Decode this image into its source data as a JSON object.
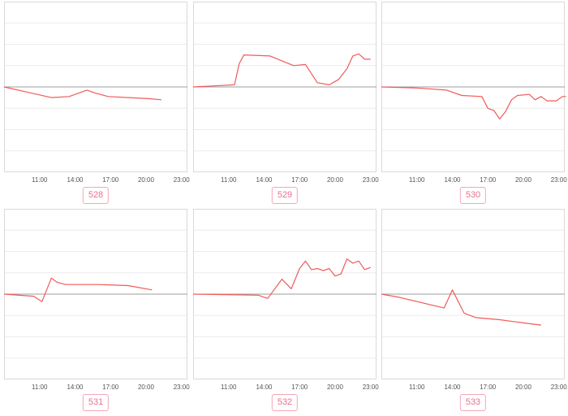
{
  "styles": {
    "line_color": "#f15a5a",
    "grid_color": "#ececec",
    "baseline_color": "#9e9e9e",
    "frame_color": "#d9d9d9",
    "badge_color": "#e8718f"
  },
  "chart_data": [
    {
      "type": "line",
      "id": "528",
      "x_ticks": [
        "11:00",
        "14:00",
        "17:00",
        "20:00",
        "23:00"
      ],
      "xlim": [
        8,
        23.5
      ],
      "ylim": [
        -4,
        4
      ],
      "x": [
        8.0,
        10.0,
        12.0,
        13.5,
        15.0,
        15.8,
        16.8,
        18.5,
        20.2,
        21.3
      ],
      "y": [
        0,
        -0.25,
        -0.5,
        -0.45,
        -0.15,
        -0.3,
        -0.45,
        -0.5,
        -0.55,
        -0.6
      ],
      "y_override": [
        0,
        -0.2,
        -0.35,
        -0.45,
        -0.2,
        -0.25,
        -0.4,
        -0.45,
        -0.45,
        -0.6
      ]
    },
    {
      "type": "line",
      "id": "529",
      "x_ticks": [
        "11:00",
        "14:00",
        "17:00",
        "20:00",
        "23:00"
      ],
      "xlim": [
        8,
        23.5
      ],
      "ylim": [
        -4,
        4
      ],
      "x": [
        8.0,
        11.5,
        11.9,
        12.3,
        14.5,
        16.5,
        17.5,
        18.5,
        19.5,
        20.3,
        21.0,
        21.5,
        22.0,
        22.5,
        23.0
      ],
      "y": [
        0,
        0.1,
        1.1,
        1.5,
        1.45,
        1.0,
        1.05,
        0.2,
        0.1,
        0.35,
        0.85,
        1.45,
        1.55,
        1.3,
        1.3
      ]
    },
    {
      "type": "line",
      "id": "530",
      "x_ticks": [
        "11:00",
        "14:00",
        "17:00",
        "20:00",
        "23:00"
      ],
      "xlim": [
        8,
        23.5
      ],
      "ylim": [
        -4,
        4
      ],
      "x": [
        8.0,
        11.0,
        13.5,
        14.8,
        16.5,
        17.0,
        17.5,
        18.0,
        18.5,
        19.0,
        19.5,
        20.5,
        21.0,
        21.5,
        22.0,
        22.8,
        23.3,
        23.6
      ],
      "y": [
        0,
        -0.05,
        -0.15,
        -0.4,
        -0.45,
        -1.0,
        -1.1,
        -1.5,
        -1.15,
        -0.6,
        -0.4,
        -0.35,
        -0.6,
        -0.45,
        -0.65,
        -0.65,
        -0.45,
        -0.45
      ]
    },
    {
      "type": "line",
      "id": "531",
      "x_ticks": [
        "11:00",
        "14:00",
        "17:00",
        "20:00",
        "23:00"
      ],
      "xlim": [
        8,
        23.5
      ],
      "ylim": [
        -4,
        4
      ],
      "x": [
        8.0,
        10.5,
        11.2,
        12.0,
        12.5,
        13.2,
        16.0,
        18.5,
        20.5
      ],
      "y": [
        0,
        -0.1,
        -0.35,
        0.75,
        0.55,
        0.45,
        0.45,
        0.4,
        0.2
      ]
    },
    {
      "type": "line",
      "id": "532",
      "x_ticks": [
        "11:00",
        "14:00",
        "17:00",
        "20:00",
        "23:00"
      ],
      "xlim": [
        8,
        23.5
      ],
      "ylim": [
        -4,
        4
      ],
      "x": [
        8.0,
        13.5,
        14.3,
        15.5,
        16.3,
        17.0,
        17.5,
        18.0,
        18.5,
        19.0,
        19.5,
        20.0,
        20.5,
        21.0,
        21.5,
        22.0,
        22.5,
        23.0
      ],
      "y": [
        0,
        -0.05,
        -0.2,
        0.7,
        0.25,
        1.2,
        1.55,
        1.15,
        1.2,
        1.1,
        1.2,
        0.85,
        0.95,
        1.65,
        1.45,
        1.55,
        1.15,
        1.25
      ]
    },
    {
      "type": "line",
      "id": "533",
      "x_ticks": [
        "11:00",
        "14:00",
        "17:00",
        "20:00",
        "23:00"
      ],
      "xlim": [
        8,
        23.5
      ],
      "ylim": [
        -4,
        4
      ],
      "x": [
        8.0,
        9.5,
        13.3,
        14.0,
        15.0,
        16.0,
        18.0,
        20.0,
        21.5
      ],
      "y": [
        0,
        -0.15,
        -0.65,
        0.2,
        -0.9,
        -1.1,
        -1.2,
        -1.35,
        -1.45
      ]
    }
  ]
}
